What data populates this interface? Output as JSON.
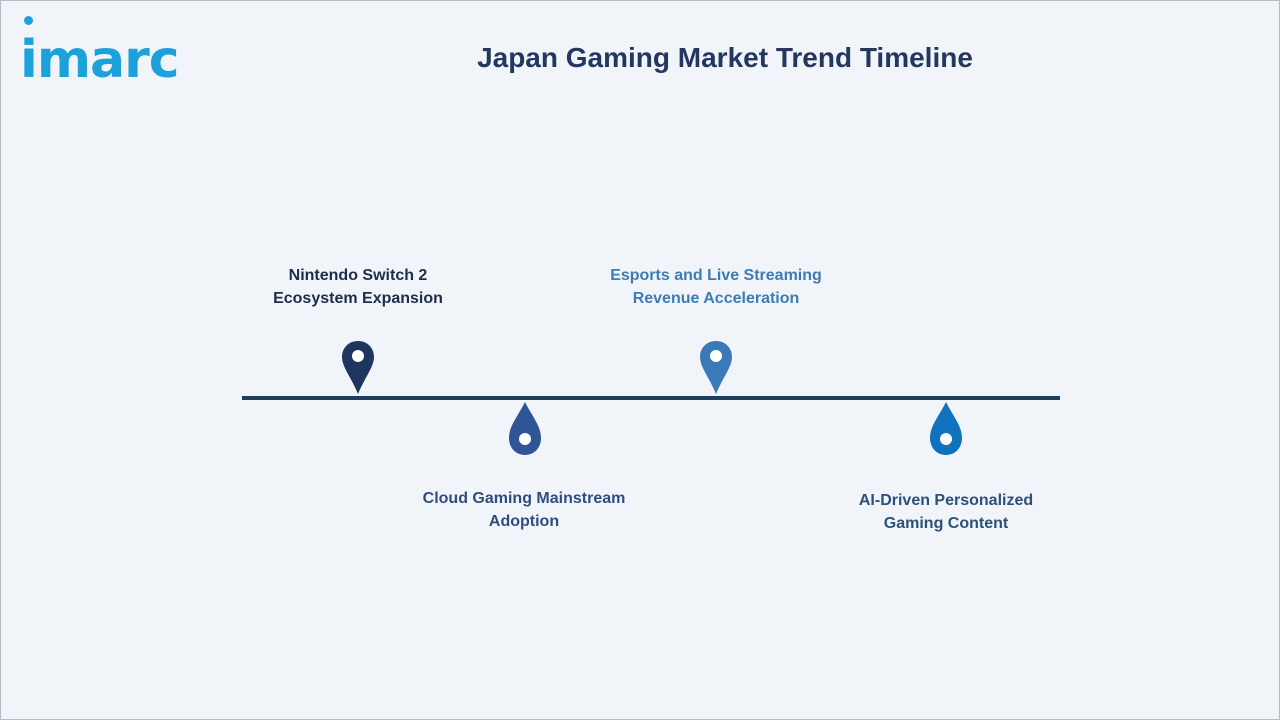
{
  "brand": {
    "logo_text": "imarc",
    "color": "#1da1db"
  },
  "title": "Japan Gaming Market Trend Timeline",
  "timeline": {
    "line_color": "#1f3d5c",
    "events": [
      {
        "line1": "Nintendo Switch 2",
        "line2": "Ecosystem Expansion",
        "position": "above",
        "color": "#1f3560",
        "label_color": "#1f2d4a"
      },
      {
        "line1": "Cloud Gaming Mainstream",
        "line2": "Adoption",
        "position": "below",
        "color": "#2f5597",
        "label_color": "#2f4d80"
      },
      {
        "line1": "Esports and Live Streaming",
        "line2": "Revenue Acceleration",
        "position": "above",
        "color": "#3a7ab8",
        "label_color": "#3d7cb3"
      },
      {
        "line1": "AI-Driven Personalized",
        "line2": "Gaming Content",
        "position": "below",
        "color": "#0f72bd",
        "label_color": "#2b5279"
      }
    ]
  }
}
